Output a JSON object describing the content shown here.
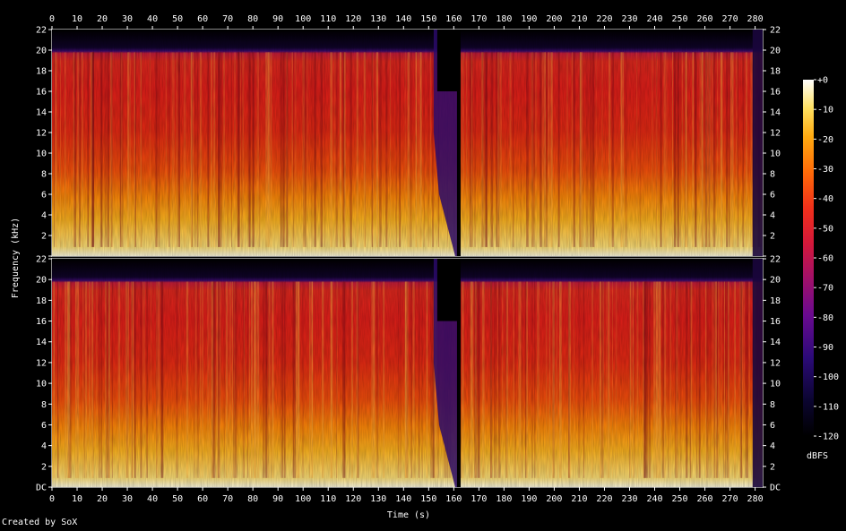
{
  "credit": "Created by SoX",
  "chart_data": {
    "type": "heatmap",
    "title": "",
    "xlabel": "Time (s)",
    "ylabel": "Frequency (kHz)",
    "xlim": [
      0,
      283
    ],
    "ylim": [
      0,
      22
    ],
    "x_ticks": [
      "0",
      "10",
      "20",
      "30",
      "40",
      "50",
      "60",
      "70",
      "80",
      "90",
      "100",
      "110",
      "120",
      "130",
      "140",
      "150",
      "160",
      "170",
      "180",
      "190",
      "200",
      "210",
      "220",
      "230",
      "240",
      "250",
      "260",
      "270",
      "280"
    ],
    "y_ticks": [
      "DC",
      "2",
      "4",
      "6",
      "8",
      "10",
      "12",
      "14",
      "16",
      "18",
      "20",
      "22"
    ],
    "colorbar": {
      "label": "dBFS",
      "range": [
        -120,
        0
      ],
      "ticks": [
        "+0",
        "-10",
        "-20",
        "-30",
        "-40",
        "-50",
        "-60",
        "-70",
        "-80",
        "-90",
        "-100",
        "-110",
        "-120"
      ]
    },
    "channels": [
      {
        "index": 1,
        "position": "top"
      },
      {
        "index": 2,
        "position": "bottom"
      }
    ],
    "features": {
      "lowpass_cutoff_khz": 20,
      "dropout_start_s": 152,
      "dropout_end_s": 162
    }
  }
}
